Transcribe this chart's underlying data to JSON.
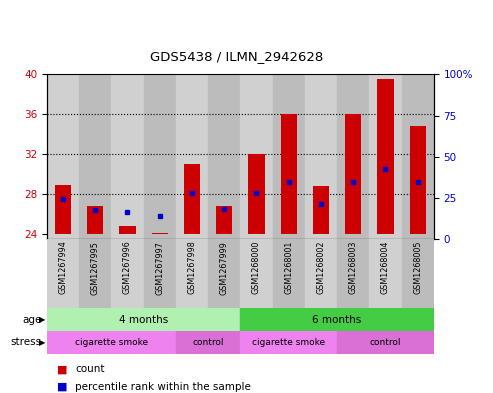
{
  "title": "GDS5438 / ILMN_2942628",
  "samples": [
    "GSM1267994",
    "GSM1267995",
    "GSM1267996",
    "GSM1267997",
    "GSM1267998",
    "GSM1267999",
    "GSM1268000",
    "GSM1268001",
    "GSM1268002",
    "GSM1268003",
    "GSM1268004",
    "GSM1268005"
  ],
  "count_values": [
    28.9,
    26.8,
    24.8,
    24.1,
    31.0,
    26.8,
    32.0,
    36.0,
    28.8,
    36.0,
    39.5,
    34.8
  ],
  "percentile_values": [
    27.5,
    26.4,
    26.2,
    25.8,
    28.1,
    26.5,
    28.1,
    29.2,
    27.0,
    29.2,
    30.5,
    29.2
  ],
  "baseline": 24,
  "ylim_left": [
    23.5,
    40
  ],
  "ylim_right": [
    0,
    100
  ],
  "yticks_left": [
    24,
    28,
    32,
    36,
    40
  ],
  "yticks_right": [
    0,
    25,
    50,
    75,
    100
  ],
  "ytick_labels_right": [
    "0",
    "25",
    "50",
    "75",
    "100%"
  ],
  "bar_color": "#cc0000",
  "percentile_color": "#0000cc",
  "background_color": "#ffffff",
  "plot_bg_color": "#ffffff",
  "col_bg_colors": [
    "#d0d0d0",
    "#bcbcbc"
  ],
  "age_groups": [
    {
      "label": "4 months",
      "start": 0,
      "end": 5,
      "color": "#b0f0b0"
    },
    {
      "label": "6 months",
      "start": 6,
      "end": 11,
      "color": "#44cc44"
    }
  ],
  "stress_regions": [
    {
      "label": "cigarette smoke",
      "start": 0,
      "end": 3,
      "color": "#ee82ee"
    },
    {
      "label": "control",
      "start": 4,
      "end": 5,
      "color": "#da70d6"
    },
    {
      "label": "cigarette smoke",
      "start": 6,
      "end": 8,
      "color": "#ee82ee"
    },
    {
      "label": "control",
      "start": 9,
      "end": 11,
      "color": "#da70d6"
    }
  ],
  "legend_count_label": "count",
  "legend_percentile_label": "percentile rank within the sample",
  "bar_width": 0.5,
  "tick_label_color_left": "#cc0000",
  "tick_label_color_right": "#0000cc"
}
